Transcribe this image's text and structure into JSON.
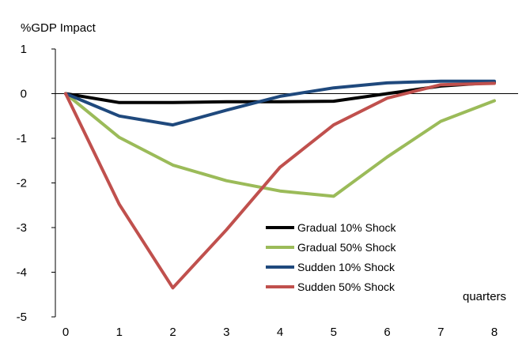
{
  "chart_data": {
    "type": "line",
    "title": "",
    "ylabel": "%GDP Impact",
    "xlabel": "quarters",
    "x": [
      0,
      1,
      2,
      3,
      4,
      5,
      6,
      7,
      8
    ],
    "xlim": [
      0,
      8
    ],
    "ylim": [
      -5,
      1
    ],
    "yticks": [
      1,
      0,
      -1,
      -2,
      -3,
      -4,
      -5
    ],
    "grid": false,
    "legend_position": "bottom-center",
    "series": [
      {
        "name": "Gradual 10% Shock",
        "color": "#000000",
        "values": [
          0,
          -0.2,
          -0.2,
          -0.18,
          -0.18,
          -0.17,
          0.0,
          0.17,
          0.25
        ]
      },
      {
        "name": "Gradual 50% Shock",
        "color": "#9BBB59",
        "values": [
          0,
          -0.98,
          -1.6,
          -1.95,
          -2.18,
          -2.3,
          -1.42,
          -0.62,
          -0.16
        ]
      },
      {
        "name": "Sudden 10% Shock",
        "color": "#1F497D",
        "values": [
          0,
          -0.5,
          -0.7,
          -0.37,
          -0.06,
          0.13,
          0.24,
          0.28,
          0.28
        ]
      },
      {
        "name": "Sudden 50% Shock",
        "color": "#C0504D",
        "values": [
          0,
          -2.48,
          -4.35,
          -3.05,
          -1.65,
          -0.7,
          -0.1,
          0.2,
          0.23
        ]
      }
    ]
  }
}
